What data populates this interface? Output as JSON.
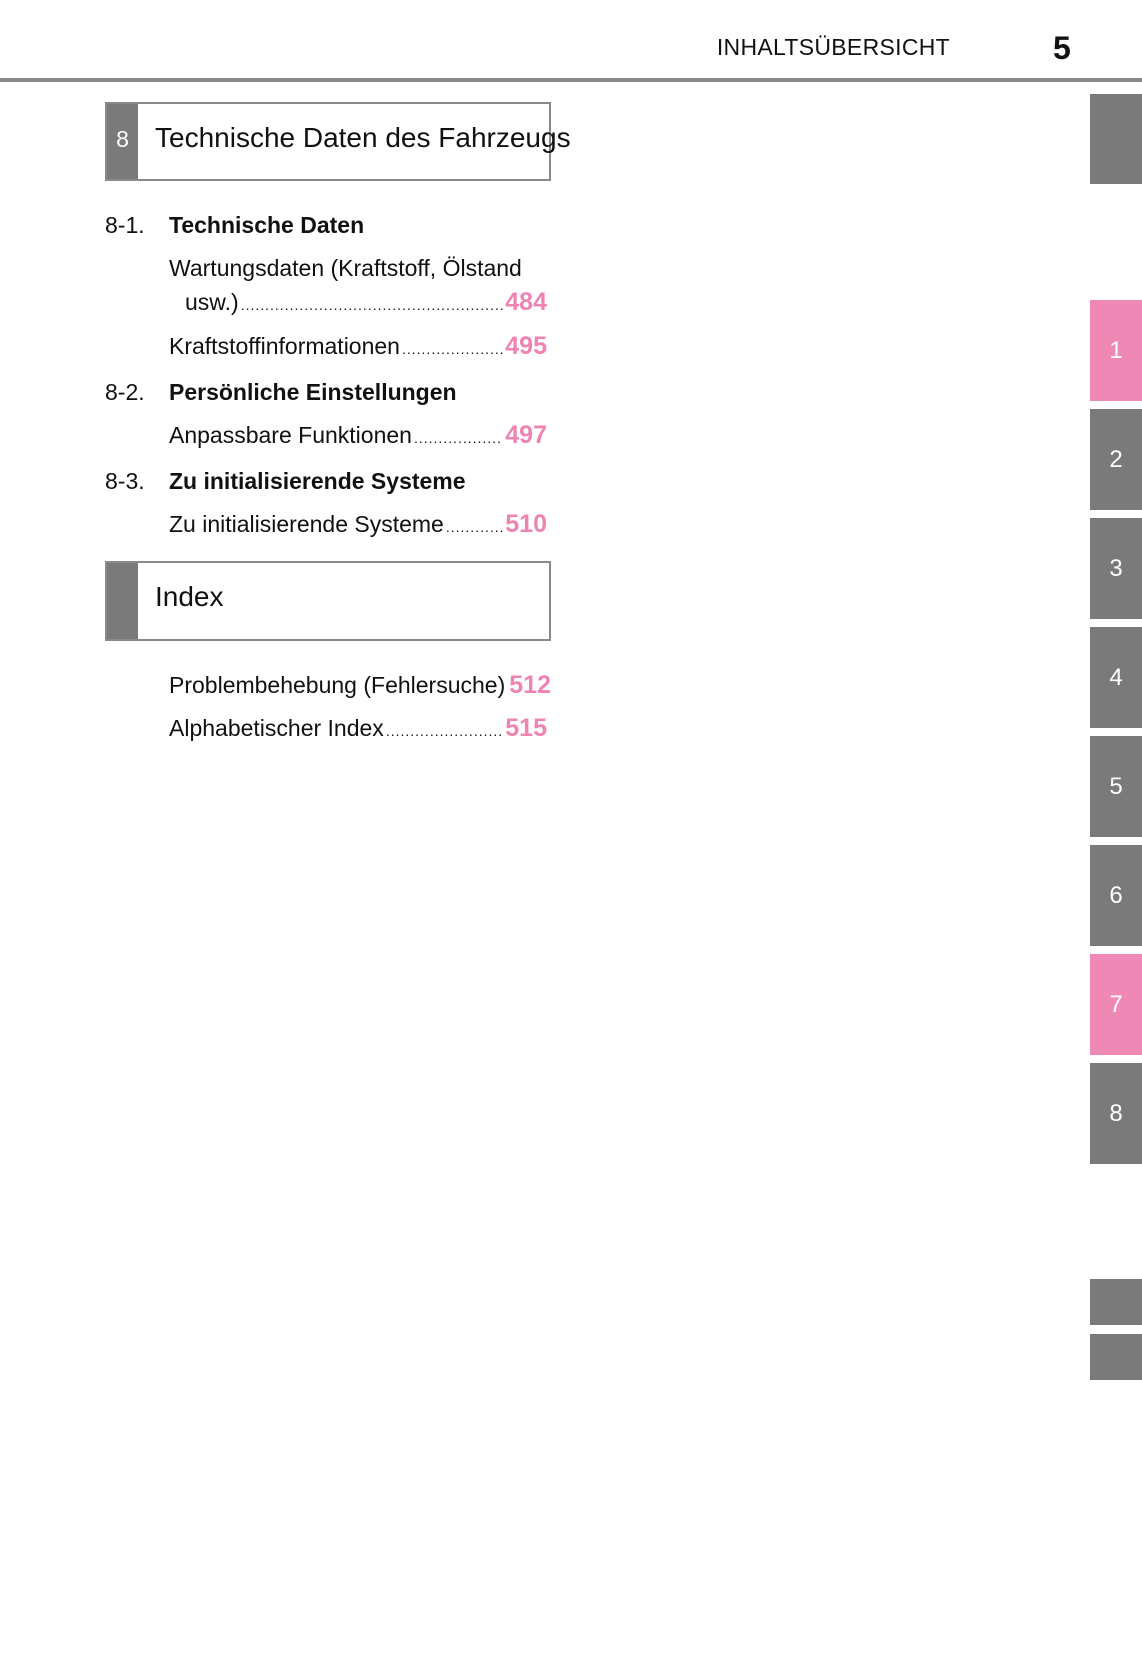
{
  "header": {
    "title": "INHALTSÜBERSICHT",
    "page_number": "5"
  },
  "chapter": {
    "number": "8",
    "title": "Technische Daten des Fahrzeugs"
  },
  "sections": [
    {
      "number": "8-1.",
      "title": "Technische Daten"
    },
    {
      "number": "8-2.",
      "title": "Persönliche Einstellungen"
    },
    {
      "number": "8-3.",
      "title": "Zu initialisierende Systeme"
    }
  ],
  "entries": {
    "wartung_line1": "Wartungsdaten (Kraftstoff, Ölstand",
    "wartung_line2": "usw.)",
    "wartung_page": "484",
    "kraftstoff": "Kraftstoffinformationen",
    "kraftstoff_page": "495",
    "anpassbare": "Anpassbare Funktionen",
    "anpassbare_page": "497",
    "init": "Zu initialisierende Systeme",
    "init_page": "510"
  },
  "index": {
    "title": "Index",
    "items": [
      {
        "label": "Problembehebung (Fehlersuche)",
        "page": "512"
      },
      {
        "label": "Alphabetischer Index",
        "page": "515"
      }
    ]
  },
  "side_tabs": [
    {
      "label": "1",
      "active": true
    },
    {
      "label": "2",
      "active": false
    },
    {
      "label": "3",
      "active": false
    },
    {
      "label": "4",
      "active": false
    },
    {
      "label": "5",
      "active": false
    },
    {
      "label": "6",
      "active": false
    },
    {
      "label": "7",
      "active": true
    },
    {
      "label": "8",
      "active": false
    }
  ],
  "colors": {
    "accent_pink": "#ef84b4",
    "tab_gray": "#7a7a7a"
  }
}
